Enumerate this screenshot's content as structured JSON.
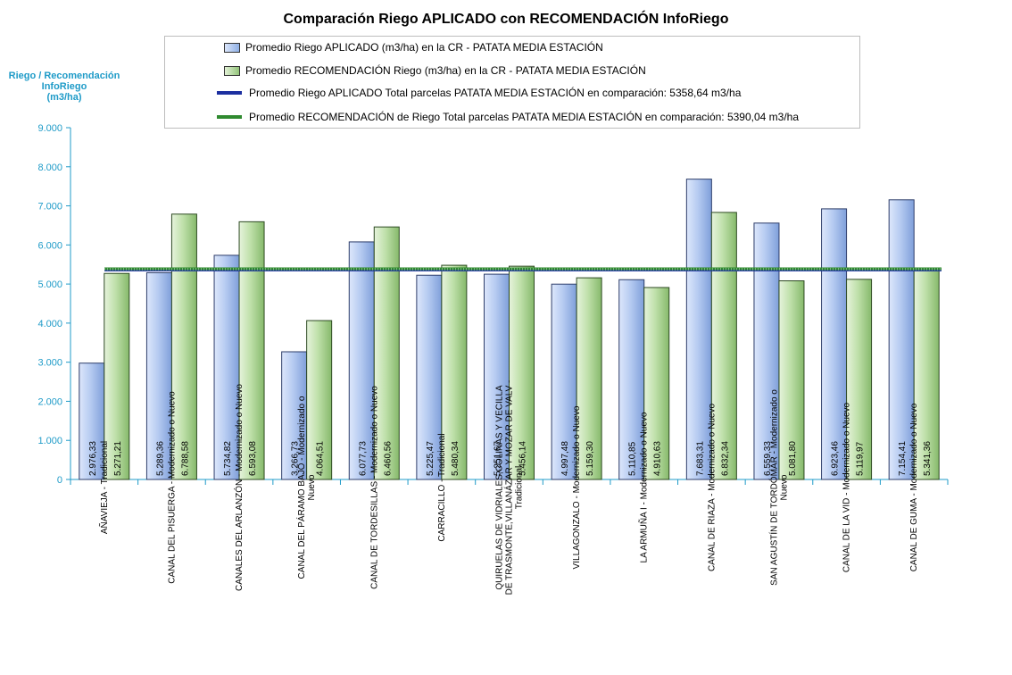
{
  "chart_data": {
    "type": "bar",
    "title": "Comparación Riego APLICADO con RECOMENDACIÓN InfoRiego",
    "ylabel": "Riego / Recomendación\nInfoRiego\n(m3/ha)",
    "ylim": [
      0,
      9000
    ],
    "yticks": [
      "0",
      "1.000",
      "2.000",
      "3.000",
      "4.000",
      "5.000",
      "6.000",
      "7.000",
      "8.000",
      "9.000"
    ],
    "categories": [
      "AÑAVIEJA - Tradicional",
      "CANAL DEL PISUERGA - Modernizado o Nuevo",
      "CANALES DEL ARLANZÓN - Modernizado o Nuevo",
      "CANAL DEL PÁRAMO BAJO - Modernizado o Nuevo",
      "CANAL DE TORDESILLAS - Modernizado o Nuevo",
      "CARRACILLO - Tradicional",
      "QUIRUELAS DE VIDRIALES,COLINAS Y VECILLA DE TRASMONTE,VILLANÁZAR Y MOZAR DE VALV - Tradicional",
      "VILLAGONZALO - Modernizado o Nuevo",
      "LA ARMUÑA I - Modernizado o Nuevo",
      "CANAL DE RIAZA - Modernizado o Nuevo",
      "SAN AGUSTÍN DE TORDÓMAR - Modernizado o Nuevo",
      "CANAL DE LA VID - Modernizado o Nuevo",
      "CANAL DE GUMA - Modernizado o Nuevo"
    ],
    "series": [
      {
        "name": "Promedio Riego APLICADO (m3/ha) en la CR - PATATA MEDIA ESTACIÓN",
        "values": [
          2976.33,
          5289.36,
          5734.82,
          3266.73,
          6077.73,
          5225.47,
          5251.67,
          4997.48,
          5110.85,
          7683.31,
          6559.33,
          6923.46,
          7154.41
        ],
        "labels": [
          "2.976,33",
          "5.289,36",
          "5.734,82",
          "3.266,73",
          "6.077,73",
          "5.225,47",
          "5.251,67",
          "4.997,48",
          "5.110,85",
          "7.683,31",
          "6.559,33",
          "6.923,46",
          "7.154,41"
        ],
        "color": "#9db8e8"
      },
      {
        "name": "Promedio RECOMENDACIÓN Riego (m3/ha) en la CR - PATATA MEDIA ESTACIÓN",
        "values": [
          5271.21,
          6788.58,
          6593.08,
          4064.51,
          6460.56,
          5480.34,
          5456.14,
          5159.3,
          4910.63,
          6832.34,
          5081.8,
          5119.97,
          5341.36
        ],
        "labels": [
          "5.271,21",
          "6.788,58",
          "6.593,08",
          "4.064,51",
          "6.460,56",
          "5.480,34",
          "5.456,14",
          "5.159,30",
          "4.910,63",
          "6.832,34",
          "5.081,80",
          "5.119,97",
          "5.341,36"
        ],
        "color": "#a5d08e"
      }
    ],
    "reference_lines": [
      {
        "name": "Promedio Riego APLICADO Total parcelas PATATA MEDIA ESTACIÓN en comparación: 5358,64 m3/ha",
        "value": 5358.64,
        "color": "#1c2fa0"
      },
      {
        "name": "Promedio RECOMENDACIÓN de Riego Total parcelas PATATA MEDIA ESTACIÓN en comparación: 5390,04 m3/ha",
        "value": 5390.04,
        "color": "#2f8a2f"
      }
    ],
    "grid": false,
    "legend_position": "top"
  }
}
